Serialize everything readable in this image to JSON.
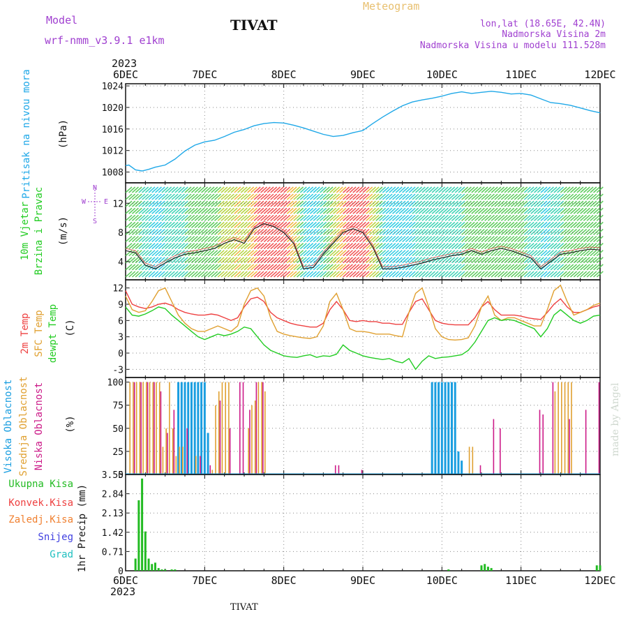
{
  "header": {
    "model_label": "Model",
    "model_name": "wrf-nmm_v3.9.1 e1km",
    "station_title": "TIVAT",
    "meteogram_label": "Meteogram",
    "coords": "lon,lat (18.65E, 42.4N)",
    "elevation": "Nadmorska Visina 2m",
    "model_elevation": "Nadmorska Visina u modelu 111.528m",
    "footer_station": "TIVAT",
    "credit": "made by Angel"
  },
  "colors": {
    "pressure": "#1fa8e8",
    "temp2m": "#ee4040",
    "sfc_temp": "#e0a030",
    "dewpoint": "#22cc22",
    "high_cloud": "#1a9ee0",
    "mid_cloud": "#e0a030",
    "low_cloud": "#cc1a88",
    "precip": "#22bb22",
    "title_purple": "#a040d0",
    "meteogram_orange": "#e8c070"
  },
  "time_axis": {
    "year_top": "2023",
    "year_bottom": "2023",
    "days": [
      "6DEC",
      "7DEC",
      "8DEC",
      "9DEC",
      "10DEC",
      "11DEC",
      "12DEC"
    ],
    "hours_total": 144
  },
  "chart_data": [
    {
      "type": "line",
      "panel": "pressure",
      "ylabel": "Pritisak na nivou mora",
      "unit": "(hPa)",
      "yticks": [
        "1008",
        "1012",
        "1016",
        "1020",
        "1024"
      ],
      "ylim": [
        1006,
        1024.4
      ],
      "grid": true,
      "series": [
        {
          "hours": [
            0,
            1,
            3,
            5,
            7,
            9,
            12,
            15,
            18,
            21,
            24,
            27,
            30,
            33,
            36,
            39,
            42,
            45,
            48,
            51,
            54,
            57,
            60,
            63,
            66,
            69,
            72,
            75,
            78,
            81,
            84,
            87,
            90,
            93,
            96,
            99,
            102,
            105,
            108,
            111,
            114,
            117,
            120,
            123,
            126,
            129,
            132,
            135,
            138,
            141,
            144
          ],
          "values": [
            1009.2,
            1009.3,
            1008.4,
            1008.2,
            1008.5,
            1008.9,
            1009.3,
            1010.4,
            1011.9,
            1013.0,
            1013.6,
            1013.9,
            1014.6,
            1015.4,
            1015.9,
            1016.6,
            1017.0,
            1017.2,
            1017.1,
            1016.7,
            1016.2,
            1015.6,
            1015.0,
            1014.6,
            1014.8,
            1015.3,
            1015.7,
            1017.0,
            1018.2,
            1019.3,
            1020.3,
            1021.0,
            1021.4,
            1021.7,
            1022.1,
            1022.6,
            1022.9,
            1022.6,
            1022.8,
            1023.0,
            1022.8,
            1022.5,
            1022.6,
            1022.3,
            1021.6,
            1020.9,
            1020.7,
            1020.4,
            1019.9,
            1019.4,
            1019.0
          ]
        }
      ]
    },
    {
      "type": "line",
      "panel": "wind",
      "ylabel": "10m Vjetar",
      "ylabel2": "Brzina i Pravac",
      "unit": "(m/s)",
      "compass": "N\n^\n|\nW <-- --> E\n|\nv\nS",
      "yticks": [
        "4",
        "8",
        "12"
      ],
      "ylim": [
        1.5,
        14.8
      ],
      "grid": true,
      "series": [
        {
          "name": "speed",
          "hours": [
            0,
            3,
            6,
            9,
            12,
            15,
            18,
            21,
            24,
            27,
            30,
            33,
            36,
            39,
            42,
            45,
            48,
            51,
            54,
            57,
            60,
            63,
            66,
            69,
            72,
            75,
            78,
            81,
            84,
            87,
            90,
            93,
            96,
            99,
            102,
            105,
            108,
            111,
            114,
            117,
            120,
            123,
            126,
            129,
            132,
            135,
            138,
            141,
            144
          ],
          "values": [
            5.5,
            5.2,
            3.5,
            3.0,
            3.8,
            4.5,
            5.0,
            5.2,
            5.5,
            5.8,
            6.5,
            7.0,
            6.5,
            8.5,
            9.2,
            8.8,
            8.0,
            6.5,
            3.0,
            3.2,
            5.0,
            6.5,
            8.0,
            8.5,
            8.0,
            6.0,
            3.0,
            3.0,
            3.2,
            3.5,
            3.8,
            4.2,
            4.5,
            4.8,
            5.0,
            5.5,
            5.0,
            5.5,
            5.8,
            5.5,
            5.0,
            4.5,
            3.0,
            4.0,
            5.0,
            5.2,
            5.5,
            5.7,
            5.6
          ]
        }
      ]
    },
    {
      "type": "line",
      "panel": "temperature",
      "ylabel": "2m Temp",
      "ylabel2": "SFC Temp",
      "ylabel3": "dewpt Temp",
      "unit": "(C)",
      "yticks": [
        "-3",
        "0",
        "3",
        "6",
        "9",
        "12"
      ],
      "ylim": [
        -4.5,
        13.5
      ],
      "grid": true,
      "series": [
        {
          "name": "2m Temp",
          "hours": [
            0,
            2,
            4,
            6,
            8,
            10,
            12,
            14,
            16,
            18,
            20,
            22,
            24,
            26,
            28,
            30,
            32,
            34,
            36,
            38,
            40,
            42,
            44,
            46,
            48,
            50,
            52,
            54,
            56,
            58,
            60,
            62,
            64,
            66,
            68,
            70,
            72,
            74,
            76,
            78,
            80,
            82,
            84,
            86,
            88,
            90,
            92,
            94,
            96,
            98,
            100,
            102,
            104,
            106,
            108,
            110,
            112,
            114,
            116,
            118,
            120,
            122,
            124,
            126,
            128,
            130,
            132,
            134,
            136,
            138,
            140,
            142,
            144
          ],
          "values": [
            11.5,
            9.0,
            8.5,
            8.2,
            8.5,
            9.0,
            9.2,
            8.8,
            8.0,
            7.5,
            7.2,
            7.0,
            7.0,
            7.2,
            7.0,
            6.5,
            6.0,
            6.5,
            8.5,
            10.0,
            10.3,
            9.5,
            7.5,
            6.5,
            6.0,
            5.5,
            5.2,
            5.0,
            4.8,
            4.8,
            5.5,
            8.0,
            9.5,
            8.0,
            6.0,
            5.8,
            6.0,
            5.8,
            5.8,
            5.5,
            5.5,
            5.3,
            5.3,
            7.5,
            9.5,
            10.0,
            8.0,
            6.0,
            5.5,
            5.3,
            5.2,
            5.2,
            5.2,
            6.5,
            8.5,
            9.5,
            8.0,
            7.0,
            7.0,
            7.0,
            6.8,
            6.5,
            6.3,
            6.2,
            7.5,
            9.0,
            10.0,
            8.5,
            7.5,
            7.5,
            8.0,
            8.5,
            8.8
          ]
        },
        {
          "name": "SFC Temp",
          "hours": [
            0,
            2,
            4,
            6,
            8,
            10,
            12,
            14,
            16,
            18,
            20,
            22,
            24,
            26,
            28,
            30,
            32,
            34,
            36,
            38,
            40,
            42,
            44,
            46,
            48,
            50,
            52,
            54,
            56,
            58,
            60,
            62,
            64,
            66,
            68,
            70,
            72,
            74,
            76,
            78,
            80,
            82,
            84,
            86,
            88,
            90,
            92,
            94,
            96,
            98,
            100,
            102,
            104,
            106,
            108,
            110,
            112,
            114,
            116,
            118,
            120,
            122,
            124,
            126,
            128,
            130,
            132,
            134,
            136,
            138,
            140,
            142,
            144
          ],
          "values": [
            10.5,
            8.0,
            7.5,
            7.8,
            9.5,
            11.5,
            12.0,
            9.5,
            7.0,
            5.5,
            4.5,
            4.0,
            4.0,
            4.5,
            5.0,
            4.5,
            4.0,
            5.0,
            9.0,
            11.5,
            12.0,
            10.5,
            6.5,
            4.0,
            3.5,
            3.2,
            3.0,
            2.8,
            2.7,
            3.0,
            5.0,
            9.5,
            11.0,
            8.0,
            4.5,
            4.0,
            4.0,
            3.8,
            3.5,
            3.5,
            3.5,
            3.2,
            3.0,
            7.5,
            11.0,
            12.0,
            8.5,
            4.5,
            3.0,
            2.5,
            2.4,
            2.5,
            2.8,
            5.0,
            8.5,
            10.5,
            7.0,
            6.0,
            6.5,
            6.5,
            6.0,
            5.5,
            5.0,
            5.0,
            8.0,
            11.5,
            12.5,
            9.5,
            7.0,
            7.5,
            8.0,
            8.8,
            9.2
          ]
        },
        {
          "name": "dewpt Temp",
          "hours": [
            0,
            2,
            4,
            6,
            8,
            10,
            12,
            14,
            16,
            18,
            20,
            22,
            24,
            26,
            28,
            30,
            32,
            34,
            36,
            38,
            40,
            42,
            44,
            46,
            48,
            50,
            52,
            54,
            56,
            58,
            60,
            62,
            64,
            66,
            68,
            70,
            72,
            74,
            76,
            78,
            80,
            82,
            84,
            86,
            88,
            90,
            92,
            94,
            96,
            98,
            100,
            102,
            104,
            106,
            108,
            110,
            112,
            114,
            116,
            118,
            120,
            122,
            124,
            126,
            128,
            130,
            132,
            134,
            136,
            138,
            140,
            142,
            144
          ],
          "values": [
            8.5,
            7.0,
            6.8,
            7.2,
            7.8,
            8.5,
            8.2,
            7.0,
            6.0,
            5.0,
            4.0,
            3.0,
            2.5,
            3.0,
            3.5,
            3.2,
            3.5,
            4.0,
            4.8,
            4.5,
            3.0,
            1.5,
            0.5,
            0.0,
            -0.5,
            -0.7,
            -0.8,
            -0.5,
            -0.3,
            -0.8,
            -0.5,
            -0.6,
            -0.2,
            1.5,
            0.5,
            0.0,
            -0.5,
            -0.8,
            -1.0,
            -1.2,
            -1.0,
            -1.5,
            -1.8,
            -1.0,
            -3.0,
            -1.5,
            -0.5,
            -1.0,
            -0.8,
            -0.7,
            -0.5,
            -0.3,
            0.5,
            2.0,
            4.0,
            6.0,
            6.5,
            6.0,
            6.2,
            6.0,
            5.5,
            5.0,
            4.5,
            3.0,
            4.5,
            7.0,
            8.0,
            7.0,
            6.0,
            5.5,
            6.0,
            6.8,
            7.0
          ]
        }
      ]
    },
    {
      "type": "bar",
      "panel": "cloud",
      "ylabel": "Visoka Oblacnost",
      "ylabel2": "Srednja Oblacnost",
      "ylabel3": "Niska Oblacnost",
      "unit": "(%)",
      "yticks": [
        "0",
        "25",
        "50",
        "75",
        "100"
      ],
      "ylim": [
        0,
        105
      ],
      "grid": true,
      "series": [
        {
          "name": "Visoka Oblacnost",
          "hours": [
            16,
            17,
            18,
            19,
            20,
            21,
            22,
            23,
            24,
            25,
            93,
            94,
            95,
            96,
            97,
            98,
            99,
            100,
            101,
            102
          ],
          "values": [
            100,
            100,
            100,
            100,
            100,
            100,
            100,
            100,
            100,
            45,
            100,
            100,
            100,
            100,
            100,
            100,
            100,
            100,
            25,
            15
          ]
        },
        {
          "name": "Srednja Oblacnost",
          "hours": [
            1,
            2,
            3,
            4,
            5,
            6,
            7,
            8,
            9,
            10,
            11,
            12,
            13,
            14,
            15,
            16,
            17,
            21,
            26,
            27,
            28,
            29,
            30,
            31,
            37,
            38,
            39,
            40,
            41,
            42,
            104,
            105,
            130,
            131,
            132,
            133,
            134,
            135
          ],
          "values": [
            100,
            100,
            100,
            100,
            100,
            100,
            100,
            100,
            100,
            100,
            30,
            50,
            100,
            50,
            20,
            30,
            30,
            20,
            5,
            75,
            90,
            100,
            100,
            100,
            50,
            75,
            80,
            100,
            100,
            90,
            30,
            30,
            90,
            100,
            100,
            100,
            100,
            100
          ]
        },
        {
          "name": "Niska Oblacnost",
          "hours": [
            3,
            5,
            7,
            9,
            11,
            13,
            15,
            19,
            23,
            26,
            29,
            32,
            35,
            36,
            38,
            40,
            42,
            64,
            65,
            72,
            108,
            112,
            114,
            126,
            127,
            130,
            135,
            140,
            144
          ],
          "values": [
            100,
            100,
            100,
            100,
            90,
            45,
            70,
            50,
            20,
            10,
            80,
            50,
            100,
            100,
            70,
            100,
            100,
            10,
            10,
            5,
            10,
            60,
            50,
            70,
            65,
            100,
            60,
            70,
            100
          ]
        }
      ]
    },
    {
      "type": "bar",
      "panel": "precip",
      "ylabel": "1hr Precip",
      "unit": "(mm)",
      "yticks": [
        "0",
        "0.71",
        "1.42",
        "2.13",
        "2.84",
        "3.55"
      ],
      "ylim": [
        0,
        3.55
      ],
      "grid": true,
      "legend": [
        "Ukupna Kisa",
        "Konvek.Kisa",
        "Zaledj.Kisa",
        "Snijeg",
        "Grad"
      ],
      "legend_colors": [
        "#22bb22",
        "#ee4040",
        "#f08030",
        "#4040e0",
        "#20c0c0"
      ],
      "series": [
        {
          "name": "Ukupna Kisa",
          "hours": [
            3,
            4,
            5,
            6,
            7,
            8,
            9,
            10,
            11,
            12,
            14,
            15,
            98,
            108,
            109,
            110,
            111,
            143,
            144
          ],
          "values": [
            0.45,
            2.6,
            3.4,
            1.45,
            0.45,
            0.25,
            0.3,
            0.1,
            0.05,
            0.05,
            0.05,
            0.05,
            0.05,
            0.2,
            0.25,
            0.15,
            0.1,
            0.2,
            0.2
          ]
        }
      ]
    }
  ]
}
